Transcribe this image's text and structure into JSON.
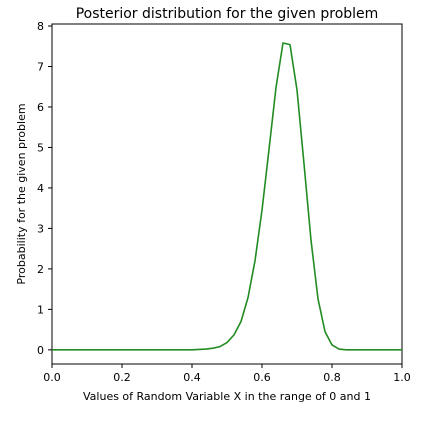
{
  "chart_data": {
    "type": "line",
    "title": "Posterior distribution for the given problem",
    "xlabel": "Values of Random Variable X in the range of 0 and 1",
    "ylabel": "Probability for the given problem",
    "xlim": [
      0.0,
      1.0
    ],
    "ylim": [
      -0.35,
      8.05
    ],
    "xticks": [
      "0.0",
      "0.2",
      "0.4",
      "0.6",
      "0.8",
      "1.0"
    ],
    "yticks": [
      "0",
      "1",
      "2",
      "3",
      "4",
      "5",
      "6",
      "7",
      "8"
    ],
    "grid": false,
    "legend": "none",
    "series": [
      {
        "color": "#228b22",
        "x": [
          0.0,
          0.05,
          0.1,
          0.15,
          0.2,
          0.25,
          0.3,
          0.35,
          0.4,
          0.42,
          0.44,
          0.46,
          0.48,
          0.5,
          0.52,
          0.54,
          0.56,
          0.58,
          0.6,
          0.62,
          0.64,
          0.66,
          0.68,
          0.7,
          0.72,
          0.74,
          0.76,
          0.78,
          0.8,
          0.82,
          0.84,
          0.86,
          0.88,
          0.9,
          0.95,
          1.0
        ],
        "y": [
          0.0,
          0.0,
          0.0,
          0.0,
          0.0,
          0.0,
          0.0,
          0.0,
          0.0,
          0.01,
          0.02,
          0.04,
          0.08,
          0.18,
          0.37,
          0.7,
          1.29,
          2.2,
          3.45,
          4.95,
          6.48,
          7.58,
          7.54,
          6.42,
          4.6,
          2.71,
          1.26,
          0.45,
          0.12,
          0.02,
          0.0,
          0.0,
          0.0,
          0.0,
          0.0,
          0.0
        ]
      }
    ]
  }
}
